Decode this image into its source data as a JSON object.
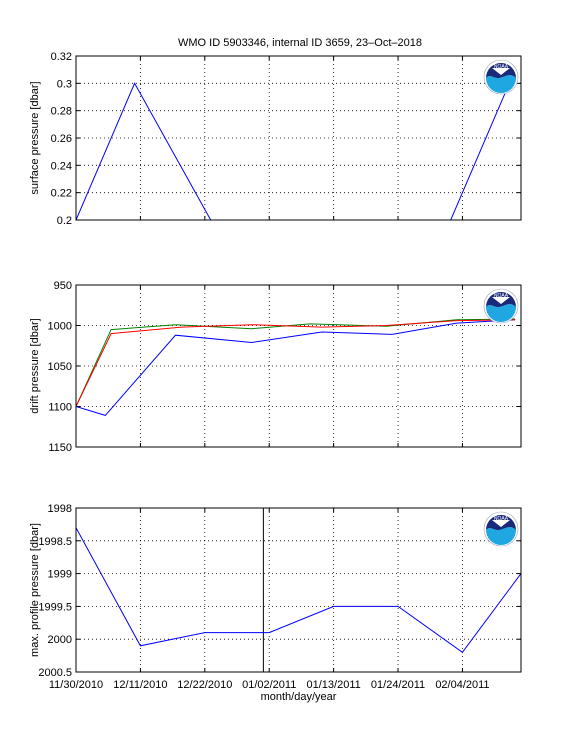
{
  "figure_title": "WMO ID 5903346, internal ID 3659, 23–Oct–2018",
  "logo_text": "NOAA",
  "colors": {
    "blue": "#0000ff",
    "green": "#008000",
    "red": "#ff0000",
    "black": "#000000",
    "noaa_navy": "#1a2a7a",
    "noaa_cyan": "#1ea7e1"
  },
  "chart_data": [
    {
      "type": "line",
      "ylabel": "surface pressure [dbar]",
      "xlabel": "",
      "xlim": [
        "2010-11-30",
        "2011-02-14"
      ],
      "ylim": [
        0.2,
        0.32
      ],
      "y_reversed": false,
      "yticks": [
        0.2,
        0.22,
        0.24,
        0.26,
        0.28,
        0.3,
        0.32
      ],
      "ytick_labels": [
        "0.2",
        "0.22",
        "0.24",
        "0.26",
        "0.28",
        "0.3",
        "0.32"
      ],
      "xticks": [
        "2010-11-30",
        "2010-12-11",
        "2010-12-22",
        "2011-01-02",
        "2011-01-13",
        "2011-01-24",
        "2011-02-04"
      ],
      "xtick_labels": [],
      "grid": "dotted",
      "series": [
        {
          "color": "#0000ff",
          "x": [
            "2010-11-30",
            "2010-12-10",
            "2010-12-23",
            "2011-01-02",
            "2011-01-12",
            "2011-01-23",
            "2011-02-02",
            "2011-02-12"
          ],
          "y": [
            0.2,
            0.3,
            0.2,
            0.2,
            0.2,
            0.2,
            0.2,
            0.3
          ]
        }
      ]
    },
    {
      "type": "line",
      "ylabel": "drift pressure [dbar]",
      "xlabel": "",
      "xlim": [
        "2010-11-30",
        "2011-02-14"
      ],
      "ylim": [
        950,
        1150
      ],
      "y_reversed": true,
      "yticks": [
        950,
        1000,
        1050,
        1100,
        1150
      ],
      "ytick_labels": [
        "950",
        "1000",
        "1050",
        "1100",
        "1150"
      ],
      "xticks": [
        "2010-11-30",
        "2010-12-11",
        "2010-12-22",
        "2011-01-02",
        "2011-01-13",
        "2011-01-24",
        "2011-02-04"
      ],
      "xtick_labels": [],
      "grid": "dotted",
      "series": [
        {
          "color": "#0000ff",
          "x": [
            "2010-11-30",
            "2010-12-05",
            "2010-12-17",
            "2010-12-30",
            "2011-01-11",
            "2011-01-23",
            "2011-02-03",
            "2011-02-13"
          ],
          "y": [
            1100,
            1111,
            1012,
            1021,
            1008,
            1011,
            997,
            993
          ]
        },
        {
          "color": "#008000",
          "x": [
            "2010-11-30",
            "2010-12-06",
            "2010-12-17",
            "2010-12-30",
            "2011-01-09",
            "2011-01-22",
            "2011-02-03",
            "2011-02-13"
          ],
          "y": [
            1100,
            1005,
            999,
            1004,
            998,
            1001,
            993,
            992
          ]
        },
        {
          "color": "#ff0000",
          "x": [
            "2010-11-30",
            "2010-12-06",
            "2010-12-18",
            "2010-12-30",
            "2011-01-11",
            "2011-01-22",
            "2011-02-03",
            "2011-02-13"
          ],
          "y": [
            1100,
            1010,
            1002,
            999,
            1002,
            1000,
            994,
            993
          ]
        }
      ]
    },
    {
      "type": "line",
      "ylabel": "max. profile pressure [dbar]",
      "xlabel": "month/day/year",
      "xlim": [
        "2010-11-30",
        "2011-02-14"
      ],
      "ylim": [
        1998,
        2000.5
      ],
      "y_reversed": true,
      "yticks": [
        1998,
        1998.5,
        1999,
        1999.5,
        2000,
        2000.5
      ],
      "ytick_labels": [
        "1998",
        "1998.5",
        "1999",
        "1999.5",
        "2000",
        "2000.5"
      ],
      "xticks": [
        "2010-11-30",
        "2010-12-11",
        "2010-12-22",
        "2011-01-02",
        "2011-01-13",
        "2011-01-24",
        "2011-02-04"
      ],
      "xtick_labels": [
        "11/30/2010",
        "12/11/2010",
        "12/22/2010",
        "01/02/2011",
        "01/13/2011",
        "01/24/2011",
        "02/04/2011"
      ],
      "grid": "dotted",
      "vline": "2011-01-01",
      "series": [
        {
          "color": "#0000ff",
          "x": [
            "2010-11-30",
            "2010-12-11",
            "2010-12-22",
            "2011-01-02",
            "2011-01-13",
            "2011-01-24",
            "2011-02-04",
            "2011-02-14"
          ],
          "y": [
            1998.3,
            2000.1,
            1999.9,
            1999.9,
            1999.5,
            1999.5,
            2000.2,
            1999.0
          ]
        }
      ]
    }
  ]
}
